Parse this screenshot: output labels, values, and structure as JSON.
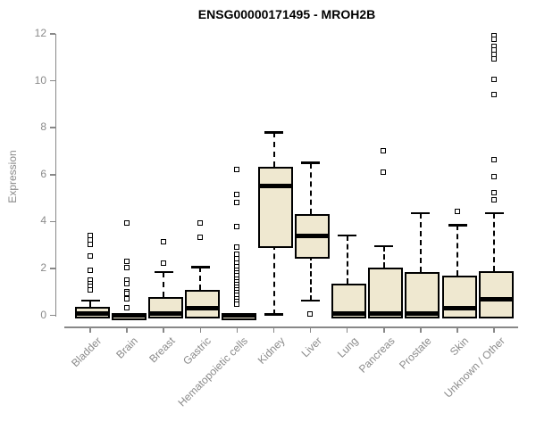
{
  "title": "ENSG00000171495 - MROH2B",
  "colors": {
    "box_fill": "#EFE8D0",
    "box_border": "#000000",
    "median": "#000000",
    "axis": "#888888",
    "tick_text": "#8a8a8a",
    "title_text": "#000000",
    "background": "#ffffff"
  },
  "chart_data": {
    "type": "boxplot",
    "title": "ENSG00000171495 - MROH2B",
    "xlabel": "",
    "ylabel": "Expression",
    "ylim": [
      0,
      12
    ],
    "yticks": [
      0,
      2,
      4,
      6,
      8,
      10,
      12
    ],
    "grid": false,
    "legend": false,
    "categories": [
      "Bladder",
      "Brain",
      "Breast",
      "Gastric",
      "Hematopoietic cells",
      "Kidney",
      "Liver",
      "Lung",
      "Pancreas",
      "Prostate",
      "Skin",
      "Unknown / Other"
    ],
    "series": [
      {
        "name": "Bladder",
        "lo": 0,
        "q1": 0,
        "med": 0.08,
        "q3": 0.36,
        "hi": 0.63,
        "outliers": [
          3.4,
          3.2,
          3.0,
          2.5,
          1.9,
          1.5,
          1.35,
          1.2,
          1.05
        ]
      },
      {
        "name": "Brain",
        "lo": 0,
        "q1": 0,
        "med": 0,
        "q3": 0,
        "hi": 0,
        "outliers": [
          3.9,
          2.3,
          2.0,
          1.5,
          1.35,
          1.0,
          0.9,
          0.7,
          0.3
        ]
      },
      {
        "name": "Breast",
        "lo": 0,
        "q1": 0,
        "med": 0.07,
        "q3": 0.79,
        "hi": 1.85,
        "outliers": [
          3.1,
          2.2
        ]
      },
      {
        "name": "Gastric",
        "lo": 0.02,
        "q1": 0.02,
        "med": 0.3,
        "q3": 1.07,
        "hi": 2.06,
        "outliers": [
          3.9,
          3.3
        ]
      },
      {
        "name": "Hematopoietic cells",
        "lo": 0,
        "q1": 0,
        "med": 0,
        "q3": 0,
        "hi": 0,
        "outliers": [
          6.2,
          5.15,
          4.8,
          3.75,
          2.9,
          2.6,
          2.4,
          2.2,
          2.05,
          1.9,
          1.78,
          1.66,
          1.54,
          1.42,
          1.3,
          1.18,
          1.06,
          0.94,
          0.82,
          0.7,
          0.58,
          0.45
        ]
      },
      {
        "name": "Kidney",
        "lo": 0.03,
        "q1": 3.02,
        "med": 5.5,
        "q3": 6.35,
        "hi": 7.8,
        "outliers": []
      },
      {
        "name": "Liver",
        "lo": 0.62,
        "q1": 2.57,
        "med": 3.4,
        "q3": 4.3,
        "hi": 6.5,
        "outliers": [
          0.03
        ]
      },
      {
        "name": "Lung",
        "lo": 0,
        "q1": 0,
        "med": 0.07,
        "q3": 1.35,
        "hi": 3.4,
        "outliers": []
      },
      {
        "name": "Pancreas",
        "lo": 0,
        "q1": 0,
        "med": 0.07,
        "q3": 2.05,
        "hi": 2.95,
        "outliers": [
          7.0,
          6.1
        ]
      },
      {
        "name": "Prostate",
        "lo": 0,
        "q1": 0,
        "med": 0.07,
        "q3": 1.85,
        "hi": 4.35,
        "outliers": []
      },
      {
        "name": "Skin",
        "lo": 0,
        "q1": 0,
        "med": 0.3,
        "q3": 1.7,
        "hi": 3.85,
        "outliers": [
          4.4
        ]
      },
      {
        "name": "Unknown / Other",
        "lo": 0,
        "q1": 0,
        "med": 0.68,
        "q3": 1.9,
        "hi": 4.35,
        "outliers": [
          11.9,
          11.75,
          11.45,
          11.3,
          11.1,
          10.9,
          10.05,
          9.4,
          6.6,
          5.9,
          5.2,
          4.9
        ]
      }
    ]
  }
}
